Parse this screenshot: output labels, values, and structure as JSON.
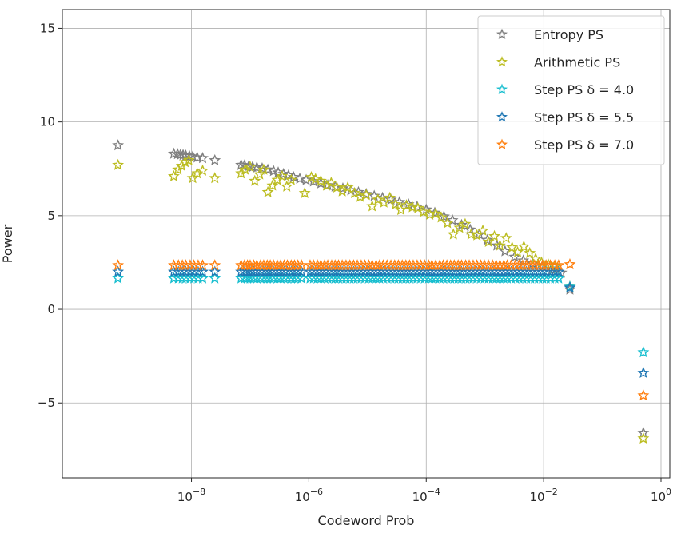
{
  "chart_data": {
    "type": "scatter",
    "marker": "star",
    "xlabel": "Codeword Prob",
    "ylabel": "Power",
    "xscale": "log",
    "xlim_log10": [
      -10.2,
      0.15
    ],
    "ylim": [
      -9.0,
      16.0
    ],
    "grid": true,
    "legend_position": "top-right",
    "x_ticks": [
      {
        "exp": -8,
        "base": "10",
        "power": "−8"
      },
      {
        "exp": -6,
        "base": "10",
        "power": "−6"
      },
      {
        "exp": -4,
        "base": "10",
        "power": "−4"
      },
      {
        "exp": -2,
        "base": "10",
        "power": "−2"
      },
      {
        "exp": 0,
        "base": "10",
        "power": "0"
      }
    ],
    "y_ticks": [
      {
        "value": 15,
        "label": "15"
      },
      {
        "value": 10,
        "label": "10"
      },
      {
        "value": 5,
        "label": "5"
      },
      {
        "value": 0,
        "label": "0"
      },
      {
        "value": -5,
        "label": "−5"
      }
    ],
    "series": [
      {
        "name": "Entropy PS",
        "legend_label": "Entropy PS",
        "color": "#7f7f7f",
        "points": [
          [
            5.6e-10,
            8.75
          ],
          [
            5e-09,
            8.3
          ],
          [
            5.8e-09,
            8.28
          ],
          [
            6.5e-09,
            8.25
          ],
          [
            7.2e-09,
            8.23
          ],
          [
            8e-09,
            8.2
          ],
          [
            9.2e-09,
            8.18
          ],
          [
            1.05e-08,
            8.15
          ],
          [
            1.25e-08,
            8.1
          ],
          [
            1.55e-08,
            8.07
          ],
          [
            2.5e-08,
            7.95
          ],
          [
            7e-08,
            7.7
          ],
          [
            8e-08,
            7.68
          ],
          [
            9.5e-08,
            7.65
          ],
          [
            1.1e-07,
            7.6
          ],
          [
            1.3e-07,
            7.57
          ],
          [
            1.6e-07,
            7.52
          ],
          [
            2e-07,
            7.45
          ],
          [
            2.5e-07,
            7.38
          ],
          [
            3e-07,
            7.3
          ],
          [
            3.7e-07,
            7.22
          ],
          [
            4.5e-07,
            7.15
          ],
          [
            5.5e-07,
            7.05
          ],
          [
            7e-07,
            6.97
          ],
          [
            9e-07,
            6.9
          ],
          [
            1.2e-06,
            6.82
          ],
          [
            1.6e-06,
            6.72
          ],
          [
            2.1e-06,
            6.62
          ],
          [
            2.8e-06,
            6.55
          ],
          [
            3.8e-06,
            6.45
          ],
          [
            5.2e-06,
            6.35
          ],
          [
            7e-06,
            6.25
          ],
          [
            9.5e-06,
            6.15
          ],
          [
            1.3e-05,
            6.05
          ],
          [
            1.8e-05,
            5.95
          ],
          [
            2.5e-05,
            5.85
          ],
          [
            3.5e-05,
            5.72
          ],
          [
            5e-05,
            5.6
          ],
          [
            7e-05,
            5.48
          ],
          [
            0.0001,
            5.32
          ],
          [
            0.00014,
            5.15
          ],
          [
            0.0002,
            4.95
          ],
          [
            0.00028,
            4.75
          ],
          [
            0.0004,
            4.5
          ],
          [
            0.00056,
            4.25
          ],
          [
            0.0008,
            4.0
          ],
          [
            0.0011,
            3.7
          ],
          [
            0.0016,
            3.4
          ],
          [
            0.0022,
            3.1
          ],
          [
            0.0032,
            2.8
          ],
          [
            0.0045,
            2.6
          ],
          [
            0.0065,
            2.45
          ],
          [
            0.0095,
            2.3
          ],
          [
            0.014,
            2.1
          ],
          [
            0.02,
            1.95
          ],
          [
            0.028,
            1.05
          ],
          [
            0.5,
            -6.6
          ]
        ]
      },
      {
        "name": "Arithmetic PS",
        "legend_label": "Arithmetic PS",
        "color": "#bcbd22",
        "points": [
          [
            5.6e-10,
            7.7
          ],
          [
            5e-09,
            7.1
          ],
          [
            5.9e-09,
            7.45
          ],
          [
            6.8e-09,
            7.65
          ],
          [
            7.8e-09,
            7.85
          ],
          [
            9e-09,
            7.95
          ],
          [
            1.05e-08,
            7.0
          ],
          [
            1.25e-08,
            7.25
          ],
          [
            1.55e-08,
            7.4
          ],
          [
            2.5e-08,
            7.0
          ],
          [
            7e-08,
            7.25
          ],
          [
            8.2e-08,
            7.45
          ],
          [
            1e-07,
            7.6
          ],
          [
            1.2e-07,
            6.85
          ],
          [
            1.45e-07,
            7.2
          ],
          [
            1.7e-07,
            7.45
          ],
          [
            2e-07,
            6.25
          ],
          [
            2.4e-07,
            6.6
          ],
          [
            2.9e-07,
            6.9
          ],
          [
            3.5e-07,
            7.1
          ],
          [
            4.2e-07,
            6.55
          ],
          [
            5e-07,
            6.9
          ],
          [
            8.5e-07,
            6.2
          ],
          [
            1.1e-06,
            7.05
          ],
          [
            1.3e-06,
            6.95
          ],
          [
            1.6e-06,
            6.85
          ],
          [
            2e-06,
            6.6
          ],
          [
            2.4e-06,
            6.75
          ],
          [
            3e-06,
            6.5
          ],
          [
            3.7e-06,
            6.3
          ],
          [
            4.6e-06,
            6.5
          ],
          [
            6e-06,
            6.2
          ],
          [
            7.5e-06,
            6.0
          ],
          [
            9.5e-06,
            6.1
          ],
          [
            1.2e-05,
            5.5
          ],
          [
            1.5e-05,
            5.85
          ],
          [
            1.9e-05,
            5.7
          ],
          [
            2.4e-05,
            5.95
          ],
          [
            3e-05,
            5.6
          ],
          [
            3.7e-05,
            5.3
          ],
          [
            4.6e-05,
            5.55
          ],
          [
            5.8e-05,
            5.45
          ],
          [
            7.2e-05,
            5.4
          ],
          [
            9e-05,
            5.2
          ],
          [
            0.000115,
            5.05
          ],
          [
            0.000145,
            5.1
          ],
          [
            0.00018,
            4.9
          ],
          [
            0.00023,
            4.6
          ],
          [
            0.00029,
            4.0
          ],
          [
            0.00037,
            4.35
          ],
          [
            0.00046,
            4.55
          ],
          [
            0.00058,
            4.0
          ],
          [
            0.00073,
            3.95
          ],
          [
            0.00092,
            4.2
          ],
          [
            0.00115,
            3.6
          ],
          [
            0.00145,
            3.9
          ],
          [
            0.0018,
            3.4
          ],
          [
            0.0023,
            3.8
          ],
          [
            0.0029,
            3.3
          ],
          [
            0.0036,
            3.05
          ],
          [
            0.0046,
            3.35
          ],
          [
            0.0058,
            3.0
          ],
          [
            0.0073,
            2.7
          ],
          [
            0.0092,
            2.5
          ],
          [
            0.012,
            2.4
          ],
          [
            0.016,
            2.3
          ],
          [
            0.028,
            1.2
          ],
          [
            0.5,
            -6.9
          ]
        ]
      },
      {
        "name": "Step PS δ = 4.0",
        "legend_label": "Step PS δ = 4.0",
        "color": "#17becf",
        "level": 1.65,
        "end_values": [
          1.2,
          -2.3
        ]
      },
      {
        "name": "Step PS δ = 5.5",
        "legend_label": "Step PS δ = 5.5",
        "color": "#1f77b4",
        "level": 2.0,
        "end_values": [
          1.15,
          -3.4
        ]
      },
      {
        "name": "Step PS δ = 7.0",
        "legend_label": "Step PS δ = 7.0",
        "color": "#ff7f0e",
        "level": 2.35,
        "end_values": [
          2.4,
          -4.6
        ]
      }
    ],
    "step_x_positions": [
      5.6e-10,
      5e-09,
      6e-09,
      7e-09,
      8e-09,
      9.5e-09,
      1.1e-08,
      1.3e-08,
      1.55e-08,
      2.5e-08,
      7e-08,
      8e-08,
      9e-08,
      1e-07,
      1.15e-07,
      1.3e-07,
      1.5e-07,
      1.7e-07,
      1.95e-07,
      2.2e-07,
      2.5e-07,
      2.9e-07,
      3.3e-07,
      3.8e-07,
      4.3e-07,
      5e-07,
      5.7e-07,
      6.5e-07,
      7.5e-07,
      1.05e-06,
      1.2e-06,
      1.4e-06,
      1.6e-06,
      1.85e-06,
      2.1e-06,
      2.45e-06,
      2.8e-06,
      3.2e-06,
      3.7e-06,
      4.3e-06,
      5e-06,
      5.8e-06,
      6.7e-06,
      7.8e-06,
      9e-06,
      1.05e-05,
      1.2e-05,
      1.4e-05,
      1.6e-05,
      1.85e-05,
      2.15e-05,
      2.5e-05,
      2.9e-05,
      3.35e-05,
      3.9e-05,
      4.5e-05,
      5.2e-05,
      6e-05,
      7e-05,
      8.1e-05,
      9.4e-05,
      0.00011,
      0.000125,
      0.000145,
      0.00017,
      0.000195,
      0.000225,
      0.00026,
      0.0003,
      0.00035,
      0.0004,
      0.00047,
      0.00054,
      0.00063,
      0.00073,
      0.00085,
      0.00098,
      0.00115,
      0.00135,
      0.00155,
      0.0018,
      0.0021,
      0.0024,
      0.0028,
      0.0033,
      0.0038,
      0.0044,
      0.0051,
      0.006,
      0.007,
      0.0082,
      0.0096,
      0.011,
      0.013,
      0.0155,
      0.018
    ],
    "step_end_x": [
      0.028,
      0.5
    ]
  }
}
